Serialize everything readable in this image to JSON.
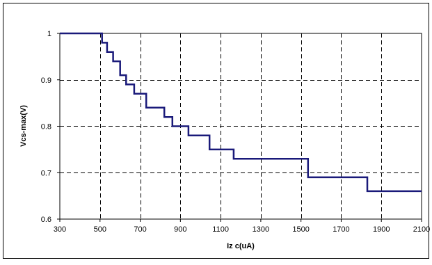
{
  "chart_data": {
    "type": "line",
    "step": true,
    "xlabel": "Iz c(uA)",
    "ylabel": "Vcs-max(V)",
    "xlim": [
      300,
      2100
    ],
    "ylim": [
      0.6,
      1.0
    ],
    "x_ticks": [
      300,
      500,
      700,
      900,
      1100,
      1300,
      1500,
      1700,
      1900,
      2100
    ],
    "y_ticks": [
      0.6,
      0.7,
      0.8,
      0.9,
      1.0
    ],
    "x_tick_labels": [
      "300",
      "500",
      "700",
      "900",
      "1100",
      "1300",
      "1500",
      "1700",
      "1900",
      "2100"
    ],
    "y_tick_labels": [
      "0.6",
      "0.7",
      "0.8",
      "0.9",
      "1"
    ],
    "grid": true,
    "grid_style": "dashed",
    "series": [
      {
        "color": "#1a1a7a",
        "points": [
          [
            300,
            1.0
          ],
          [
            510,
            1.0
          ],
          [
            510,
            0.98
          ],
          [
            535,
            0.98
          ],
          [
            535,
            0.96
          ],
          [
            565,
            0.96
          ],
          [
            565,
            0.94
          ],
          [
            600,
            0.94
          ],
          [
            600,
            0.91
          ],
          [
            630,
            0.91
          ],
          [
            630,
            0.89
          ],
          [
            670,
            0.89
          ],
          [
            670,
            0.87
          ],
          [
            730,
            0.87
          ],
          [
            730,
            0.84
          ],
          [
            820,
            0.84
          ],
          [
            820,
            0.82
          ],
          [
            860,
            0.82
          ],
          [
            860,
            0.8
          ],
          [
            940,
            0.8
          ],
          [
            940,
            0.78
          ],
          [
            1045,
            0.78
          ],
          [
            1045,
            0.75
          ],
          [
            1165,
            0.75
          ],
          [
            1165,
            0.73
          ],
          [
            1535,
            0.73
          ],
          [
            1535,
            0.69
          ],
          [
            1830,
            0.69
          ],
          [
            1830,
            0.66
          ],
          [
            2100,
            0.66
          ]
        ]
      }
    ]
  }
}
